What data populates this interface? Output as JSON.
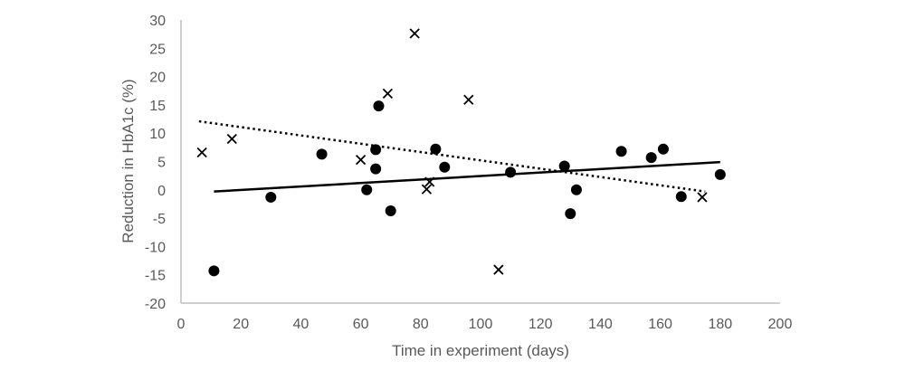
{
  "chart_data": {
    "type": "scatter",
    "title": "",
    "xlabel": "Time in experiment (days)",
    "ylabel": "Reduction in HbA1c (%)",
    "xlim": [
      0,
      200
    ],
    "ylim": [
      -20,
      30
    ],
    "xticks": [
      0,
      20,
      40,
      60,
      80,
      100,
      120,
      140,
      160,
      180,
      200
    ],
    "yticks": [
      -20,
      -15,
      -10,
      -5,
      0,
      5,
      10,
      15,
      20,
      25,
      30
    ],
    "grid": false,
    "legend": "none",
    "series": [
      {
        "marker": "circle",
        "color": "#000000",
        "points": [
          [
            11,
            -14.3
          ],
          [
            30,
            -1.3
          ],
          [
            47,
            6.3
          ],
          [
            62,
            0
          ],
          [
            65,
            7.1
          ],
          [
            65,
            3.7
          ],
          [
            66,
            14.8
          ],
          [
            70,
            -3.7
          ],
          [
            85,
            7.2
          ],
          [
            88,
            4
          ],
          [
            110,
            3.1
          ],
          [
            128,
            4.2
          ],
          [
            130,
            -4.2
          ],
          [
            132,
            0
          ],
          [
            147,
            6.8
          ],
          [
            157,
            5.7
          ],
          [
            161,
            7.2
          ],
          [
            167,
            -1.2
          ],
          [
            180,
            2.7
          ]
        ],
        "trendline": {
          "style": "solid",
          "from": [
            11,
            -0.3
          ],
          "to": [
            180,
            4.9
          ]
        }
      },
      {
        "marker": "x",
        "color": "#000000",
        "points": [
          [
            7,
            6.6
          ],
          [
            17,
            9
          ],
          [
            60,
            5.3
          ],
          [
            69,
            17
          ],
          [
            78,
            27.6
          ],
          [
            82,
            0.1
          ],
          [
            83,
            1.4
          ],
          [
            96,
            15.9
          ],
          [
            106,
            -14.1
          ],
          [
            174,
            -1.3
          ]
        ],
        "trendline": {
          "style": "dotted",
          "from": [
            6,
            12.1
          ],
          "to": [
            175,
            -0.3
          ]
        }
      }
    ]
  }
}
